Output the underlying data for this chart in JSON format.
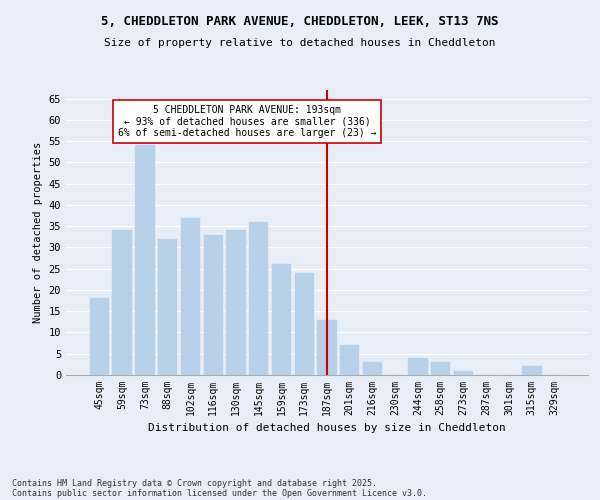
{
  "title": "5, CHEDDLETON PARK AVENUE, CHEDDLETON, LEEK, ST13 7NS",
  "subtitle": "Size of property relative to detached houses in Cheddleton",
  "xlabel": "Distribution of detached houses by size in Cheddleton",
  "ylabel": "Number of detached properties",
  "footer1": "Contains HM Land Registry data © Crown copyright and database right 2025.",
  "footer2": "Contains public sector information licensed under the Open Government Licence v3.0.",
  "categories": [
    "45sqm",
    "59sqm",
    "73sqm",
    "88sqm",
    "102sqm",
    "116sqm",
    "130sqm",
    "145sqm",
    "159sqm",
    "173sqm",
    "187sqm",
    "201sqm",
    "216sqm",
    "230sqm",
    "244sqm",
    "258sqm",
    "273sqm",
    "287sqm",
    "301sqm",
    "315sqm",
    "329sqm"
  ],
  "values": [
    18,
    34,
    54,
    32,
    37,
    33,
    34,
    36,
    26,
    24,
    13,
    7,
    3,
    0,
    4,
    3,
    1,
    0,
    0,
    2,
    0
  ],
  "bar_color": "#b8d0e8",
  "bar_edgecolor": "#b8d0e8",
  "background_color": "#e8eef8",
  "grid_color": "#ffffff",
  "vline_x_index": 10,
  "vline_color": "#cc0000",
  "annotation_text": "5 CHEDDLETON PARK AVENUE: 193sqm\n← 93% of detached houses are smaller (336)\n6% of semi-detached houses are larger (23) →",
  "annotation_box_color": "#ffffff",
  "annotation_box_edgecolor": "#cc0000",
  "ylim": [
    0,
    67
  ],
  "yticks": [
    0,
    5,
    10,
    15,
    20,
    25,
    30,
    35,
    40,
    45,
    50,
    55,
    60,
    65
  ]
}
